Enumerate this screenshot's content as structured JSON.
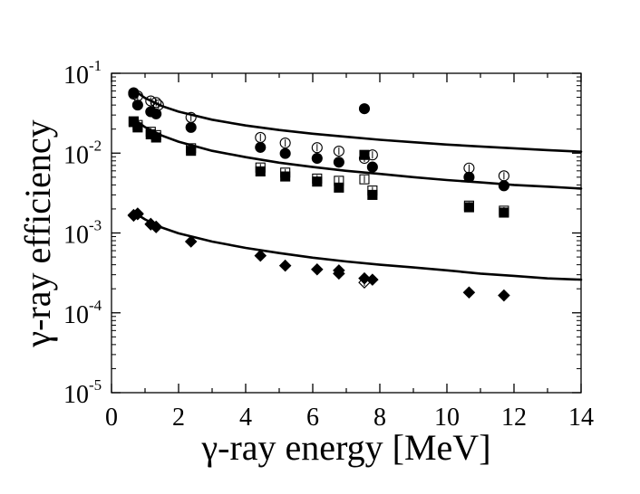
{
  "chart_data": {
    "type": "scatter",
    "title": "",
    "xlabel": "γ-ray energy [MeV]",
    "ylabel": "γ-ray efficiency",
    "xlim": [
      0,
      14
    ],
    "ylim": [
      1e-05,
      0.1
    ],
    "yscale": "log",
    "grid": false,
    "legend": "none",
    "x_ticks": [
      {
        "value": 0,
        "label": "0"
      },
      {
        "value": 2,
        "label": "2"
      },
      {
        "value": 4,
        "label": "4"
      },
      {
        "value": 6,
        "label": "6"
      },
      {
        "value": 8,
        "label": "8"
      },
      {
        "value": 10,
        "label": "10"
      },
      {
        "value": 12,
        "label": "12"
      },
      {
        "value": 14,
        "label": "14"
      }
    ],
    "y_ticks": [
      {
        "value": 0.1,
        "base": "10",
        "exp": "-1"
      },
      {
        "value": 0.01,
        "base": "10",
        "exp": "-2"
      },
      {
        "value": 0.001,
        "base": "10",
        "exp": "-3"
      },
      {
        "value": 0.0001,
        "base": "10",
        "exp": "-4"
      },
      {
        "value": 1e-05,
        "base": "10",
        "exp": "-5"
      }
    ],
    "series": [
      {
        "name": "filled circles",
        "marker": "circle",
        "filled": true,
        "points": [
          [
            0.66,
            0.057
          ],
          [
            0.78,
            0.04
          ],
          [
            1.17,
            0.033
          ],
          [
            1.33,
            0.031
          ],
          [
            2.37,
            0.021
          ],
          [
            4.44,
            0.0118
          ],
          [
            5.18,
            0.0099
          ],
          [
            6.13,
            0.0086
          ],
          [
            6.78,
            0.0077
          ],
          [
            7.54,
            0.036
          ],
          [
            7.78,
            0.0067
          ],
          [
            10.66,
            0.005
          ],
          [
            11.7,
            0.0039
          ]
        ]
      },
      {
        "name": "open circles",
        "marker": "circle",
        "filled": false,
        "points": [
          [
            0.66,
            0.055
          ],
          [
            0.78,
            0.052
          ],
          [
            1.17,
            0.045
          ],
          [
            1.33,
            0.043
          ],
          [
            1.4,
            0.04
          ],
          [
            2.37,
            0.028
          ],
          [
            4.44,
            0.0157
          ],
          [
            5.18,
            0.0134
          ],
          [
            6.13,
            0.0117
          ],
          [
            6.78,
            0.0106
          ],
          [
            7.54,
            0.0086
          ],
          [
            7.78,
            0.0095
          ],
          [
            10.66,
            0.0065
          ],
          [
            11.7,
            0.0052
          ]
        ]
      },
      {
        "name": "filled squares",
        "marker": "square",
        "filled": true,
        "points": [
          [
            0.66,
            0.025
          ],
          [
            0.78,
            0.021
          ],
          [
            1.17,
            0.0172
          ],
          [
            1.33,
            0.0157
          ],
          [
            2.37,
            0.0107
          ],
          [
            4.44,
            0.0059
          ],
          [
            5.18,
            0.0051
          ],
          [
            6.13,
            0.0044
          ],
          [
            6.78,
            0.0037
          ],
          [
            7.54,
            0.0095
          ],
          [
            7.78,
            0.003
          ],
          [
            10.66,
            0.0021
          ],
          [
            11.7,
            0.0018
          ]
        ]
      },
      {
        "name": "open squares",
        "marker": "square",
        "filled": false,
        "points": [
          [
            0.66,
            0.0245
          ],
          [
            0.78,
            0.0225
          ],
          [
            1.17,
            0.0185
          ],
          [
            1.33,
            0.0168
          ],
          [
            2.37,
            0.0115
          ],
          [
            4.44,
            0.0066
          ],
          [
            5.18,
            0.0057
          ],
          [
            6.13,
            0.0048
          ],
          [
            6.78,
            0.0045
          ],
          [
            7.54,
            0.0047
          ],
          [
            7.78,
            0.0034
          ],
          [
            10.66,
            0.0022
          ],
          [
            11.7,
            0.0019
          ]
        ]
      },
      {
        "name": "filled diamonds",
        "marker": "diamond",
        "filled": true,
        "points": [
          [
            0.66,
            0.00165
          ],
          [
            0.78,
            0.00175
          ],
          [
            1.17,
            0.0013
          ],
          [
            1.33,
            0.0012
          ],
          [
            2.37,
            0.00078
          ],
          [
            4.44,
            0.00052
          ],
          [
            5.18,
            0.00039
          ],
          [
            6.13,
            0.00035
          ],
          [
            6.78,
            0.00034
          ],
          [
            6.78,
            0.00031
          ],
          [
            7.54,
            0.00027
          ],
          [
            7.78,
            0.00026
          ],
          [
            10.66,
            0.00018
          ],
          [
            11.7,
            0.000165
          ]
        ]
      },
      {
        "name": "open diamonds",
        "marker": "diamond",
        "filled": false,
        "points": [
          [
            0.66,
            0.00168
          ],
          [
            0.78,
            0.00172
          ],
          [
            1.17,
            0.00128
          ],
          [
            1.33,
            0.00118
          ],
          [
            7.54,
            0.00024
          ]
        ]
      }
    ],
    "fit_curves": [
      {
        "name": "upper fit",
        "points": [
          [
            0.66,
            0.0618
          ],
          [
            1,
            0.0491
          ],
          [
            1.5,
            0.0389
          ],
          [
            2,
            0.0331
          ],
          [
            3,
            0.0262
          ],
          [
            4,
            0.0222
          ],
          [
            5,
            0.0195
          ],
          [
            6,
            0.0175
          ],
          [
            7,
            0.016
          ],
          [
            8,
            0.0147
          ],
          [
            9,
            0.0137
          ],
          [
            10,
            0.0128
          ],
          [
            11,
            0.0121
          ],
          [
            12,
            0.0115
          ],
          [
            13,
            0.0109
          ],
          [
            14,
            0.0104
          ]
        ]
      },
      {
        "name": "middle fit",
        "points": [
          [
            0.66,
            0.0267
          ],
          [
            1,
            0.0212
          ],
          [
            1.5,
            0.0166
          ],
          [
            2,
            0.0139
          ],
          [
            3,
            0.0107
          ],
          [
            4,
            0.0089
          ],
          [
            5,
            0.0076
          ],
          [
            6,
            0.0067
          ],
          [
            7,
            0.006
          ],
          [
            8,
            0.0055
          ],
          [
            9,
            0.005
          ],
          [
            10,
            0.0046
          ],
          [
            11,
            0.0043
          ],
          [
            12,
            0.004
          ],
          [
            13,
            0.0038
          ],
          [
            14,
            0.0036
          ]
        ]
      },
      {
        "name": "lower fit",
        "points": [
          [
            0.66,
            0.00182
          ],
          [
            1,
            0.00148
          ],
          [
            1.5,
            0.00117
          ],
          [
            2,
            0.00099
          ],
          [
            3,
            0.00078
          ],
          [
            4,
            0.00065
          ],
          [
            5,
            0.00056
          ],
          [
            6,
            0.00049
          ],
          [
            7,
            0.00044
          ],
          [
            8,
            0.0004
          ],
          [
            9,
            0.00037
          ],
          [
            10,
            0.00034
          ],
          [
            11,
            0.00031
          ],
          [
            12,
            0.00029
          ],
          [
            13,
            0.00027
          ],
          [
            14,
            0.00026
          ]
        ]
      }
    ]
  }
}
